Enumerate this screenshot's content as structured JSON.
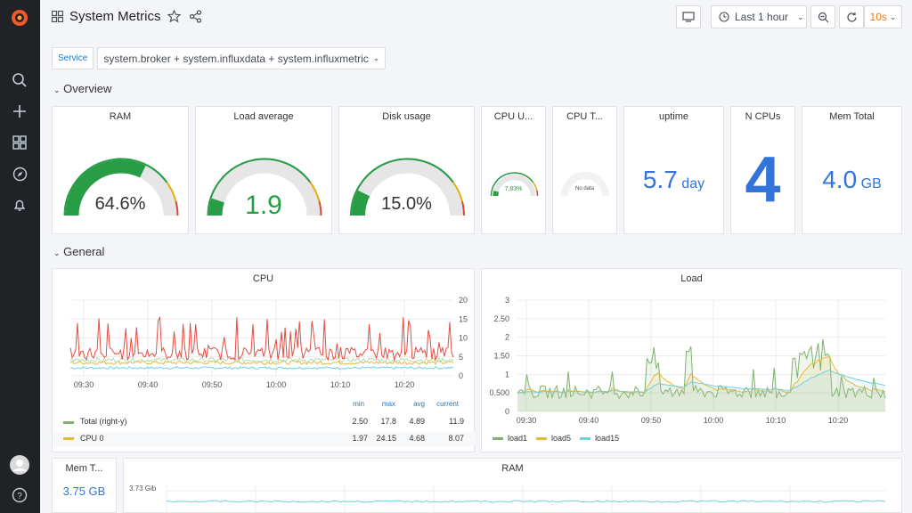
{
  "dashboard": {
    "title": "System Metrics"
  },
  "toolbar": {
    "time_range": "Last 1 hour",
    "refresh": "10s"
  },
  "variables": {
    "service_label": "Service",
    "service_value": "system.broker + system.influxdata + system.influxmetric"
  },
  "rows": {
    "overview": "Overview",
    "general": "General"
  },
  "panels": {
    "ram": {
      "title": "RAM",
      "value": "64.6%",
      "fraction": 0.646
    },
    "load": {
      "title": "Load average",
      "value": "1.9",
      "fraction": 0.1
    },
    "disk": {
      "title": "Disk usage",
      "value": "15.0%",
      "fraction": 0.15
    },
    "cpu_u": {
      "title": "CPU U...",
      "value": "7.83%",
      "fraction": 0.078
    },
    "cpu_t": {
      "title": "CPU T...",
      "value": "No data"
    },
    "uptime": {
      "title": "uptime",
      "value": "5.7",
      "unit": "day"
    },
    "ncpus": {
      "title": "N CPUs",
      "value": "4"
    },
    "memtotal": {
      "title": "Mem Total",
      "value": "4.0",
      "unit": "GB"
    },
    "memt2": {
      "title": "Mem T...",
      "value": "3.75 GB"
    },
    "ram2": {
      "title": "RAM",
      "ylabel": "3.73 Gib"
    },
    "cpu": {
      "title": "CPU",
      "yticks": [
        "20",
        "15",
        "10",
        "5",
        "0"
      ],
      "xticks": [
        "09:30",
        "09:40",
        "09:50",
        "10:00",
        "10:10",
        "10:20"
      ],
      "legend_headers": [
        "min",
        "max",
        "avg",
        "current"
      ],
      "legend": [
        {
          "name": "Total  (right-y)",
          "color": "#7eb26d",
          "min": "2.50",
          "max": "17.8",
          "avg": "4.89",
          "current": "11.9"
        },
        {
          "name": "CPU 0",
          "color": "#eab839",
          "min": "1.97",
          "max": "24.15",
          "avg": "4.68",
          "current": "8.07"
        }
      ]
    },
    "loadgraph": {
      "title": "Load",
      "yticks": [
        "3",
        "2.50",
        "2",
        "1.50",
        "1",
        "0.500",
        "0"
      ],
      "xticks": [
        "09:30",
        "09:40",
        "09:50",
        "10:00",
        "10:10",
        "10:20"
      ],
      "legend": [
        {
          "name": "load1",
          "color": "#7eb26d"
        },
        {
          "name": "load5",
          "color": "#eab839"
        },
        {
          "name": "load15",
          "color": "#6ed0e0"
        }
      ]
    }
  },
  "colors": {
    "green": "#299c46",
    "orange": "#e5ac0e",
    "red": "#d44a3a",
    "blue": "#3274d9"
  }
}
